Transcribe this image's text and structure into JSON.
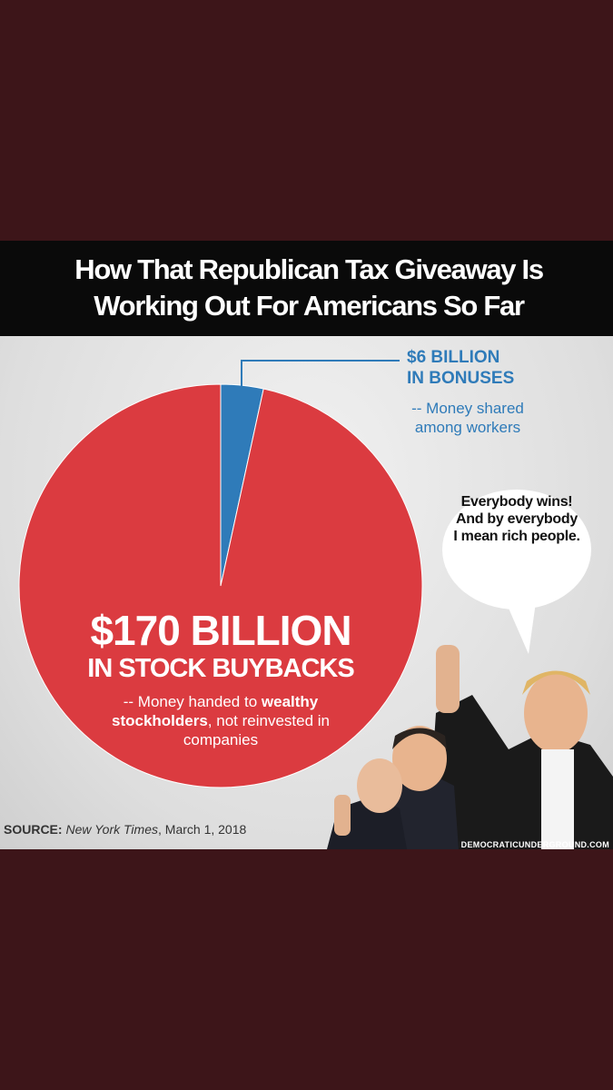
{
  "chart_data": {
    "type": "pie",
    "title": "How That Republican Tax Giveaway Is Working Out For Americans So Far",
    "categories": [
      "IN BONUSES",
      "IN STOCK BUYBACKS"
    ],
    "values": [
      6,
      170
    ],
    "value_labels": [
      "$6 BILLION",
      "$170 BILLION"
    ],
    "colors": [
      "#2f7bb9",
      "#db3b40"
    ],
    "annotations": [
      [
        "-- Money shared among workers"
      ],
      [
        "-- Money handed to ",
        "wealthy stockholders",
        ", not reinvested in companies"
      ]
    ],
    "speech_bubble": "Everybody wins! And by everybody I mean rich people.",
    "source": [
      "SOURCE:",
      "New York Times",
      ", March 1, 2018"
    ],
    "watermark": "DEMOCRATICUNDERGROUND.COM"
  }
}
